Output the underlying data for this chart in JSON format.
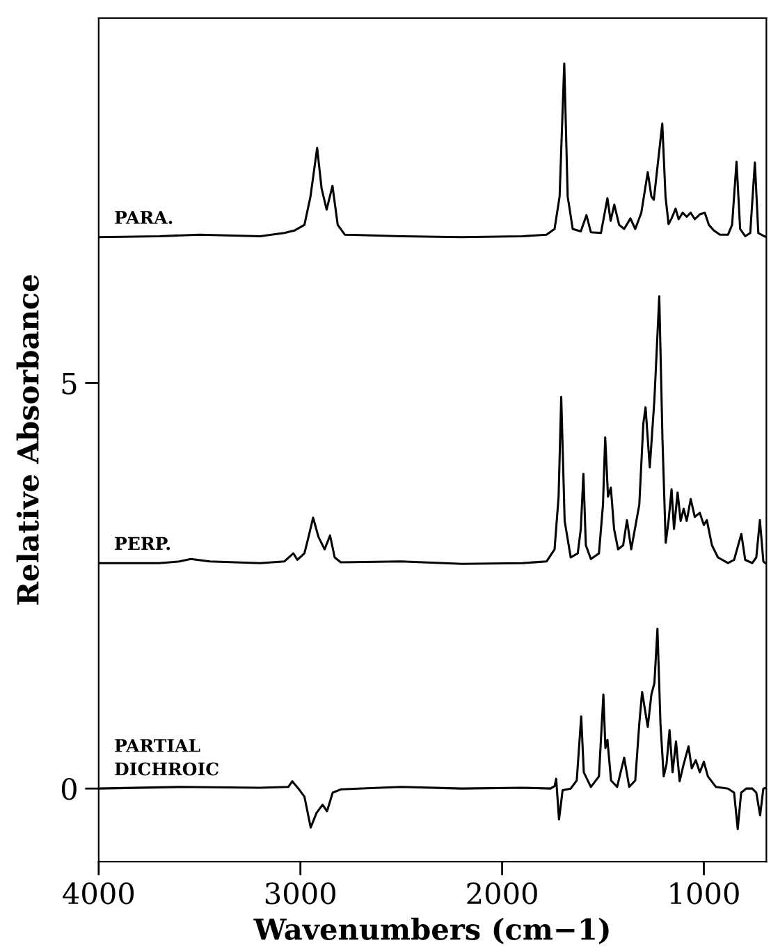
{
  "chart_data": {
    "type": "line",
    "xlabel": "Wavenumbers (cm−1)",
    "ylabel": "Relative Absorbance",
    "xlim": [
      4000,
      690
    ],
    "ylim": [
      -0.9,
      9.5
    ],
    "xticks": [
      4000,
      3000,
      2000,
      1000
    ],
    "yticks": [
      0,
      5
    ],
    "grid": false,
    "legend": false,
    "marker": "none",
    "line_style": "solid",
    "series": [
      {
        "name": "PARA.",
        "color": "#000000",
        "x": [
          4000,
          3700,
          3500,
          3200,
          3080,
          3030,
          2980,
          2950,
          2917,
          2895,
          2870,
          2841,
          2815,
          2780,
          2500,
          2200,
          1900,
          1780,
          1740,
          1715,
          1692,
          1675,
          1650,
          1610,
          1582,
          1560,
          1510,
          1478,
          1462,
          1444,
          1420,
          1395,
          1364,
          1340,
          1310,
          1278,
          1260,
          1248,
          1206,
          1190,
          1175,
          1160,
          1140,
          1125,
          1105,
          1085,
          1065,
          1045,
          1020,
          995,
          975,
          950,
          920,
          880,
          860,
          838,
          820,
          795,
          770,
          747,
          730,
          700,
          690
        ],
        "values": [
          6.8,
          6.81,
          6.83,
          6.81,
          6.85,
          6.88,
          6.95,
          7.3,
          7.9,
          7.4,
          7.14,
          7.43,
          6.95,
          6.83,
          6.81,
          6.8,
          6.81,
          6.83,
          6.9,
          7.3,
          8.94,
          7.3,
          6.9,
          6.87,
          7.07,
          6.86,
          6.85,
          7.28,
          7.0,
          7.2,
          6.95,
          6.9,
          7.03,
          6.9,
          7.1,
          7.6,
          7.3,
          7.26,
          8.2,
          7.3,
          6.96,
          7.03,
          7.15,
          7.02,
          7.1,
          7.05,
          7.1,
          7.02,
          7.08,
          7.1,
          6.95,
          6.88,
          6.83,
          6.83,
          6.95,
          7.73,
          6.9,
          6.81,
          6.85,
          7.72,
          6.85,
          6.81,
          6.8
        ]
      },
      {
        "name": "PERP.",
        "color": "#000000",
        "x": [
          4000,
          3700,
          3600,
          3543,
          3450,
          3200,
          3080,
          3035,
          3015,
          2980,
          2960,
          2937,
          2910,
          2880,
          2853,
          2830,
          2800,
          2500,
          2200,
          1900,
          1780,
          1740,
          1720,
          1707,
          1690,
          1660,
          1625,
          1610,
          1597,
          1585,
          1560,
          1520,
          1500,
          1489,
          1475,
          1461,
          1445,
          1425,
          1400,
          1381,
          1360,
          1320,
          1300,
          1289,
          1268,
          1245,
          1221,
          1205,
          1189,
          1175,
          1160,
          1148,
          1130,
          1115,
          1100,
          1085,
          1065,
          1045,
          1020,
          1000,
          985,
          960,
          930,
          880,
          850,
          814,
          795,
          760,
          740,
          722,
          705,
          690
        ],
        "values": [
          2.78,
          2.78,
          2.8,
          2.83,
          2.8,
          2.78,
          2.8,
          2.9,
          2.82,
          2.9,
          3.1,
          3.34,
          3.1,
          2.95,
          3.12,
          2.85,
          2.79,
          2.8,
          2.77,
          2.78,
          2.8,
          2.95,
          3.6,
          4.83,
          3.3,
          2.85,
          2.9,
          3.2,
          3.88,
          3.0,
          2.83,
          2.9,
          3.5,
          4.33,
          3.6,
          3.71,
          3.2,
          2.95,
          3.0,
          3.31,
          2.95,
          3.5,
          4.5,
          4.7,
          3.96,
          4.8,
          6.07,
          4.3,
          3.03,
          3.3,
          3.69,
          3.2,
          3.65,
          3.3,
          3.45,
          3.3,
          3.57,
          3.35,
          3.4,
          3.25,
          3.31,
          3.0,
          2.85,
          2.78,
          2.82,
          3.14,
          2.82,
          2.78,
          2.85,
          3.31,
          2.8,
          2.77
        ]
      },
      {
        "name": "PARTIAL\nDICHROIC",
        "color": "#000000",
        "x": [
          4000,
          3600,
          3200,
          3060,
          3040,
          3010,
          2980,
          2949,
          2920,
          2890,
          2868,
          2840,
          2800,
          2500,
          2200,
          1900,
          1760,
          1740,
          1732,
          1718,
          1700,
          1660,
          1630,
          1608,
          1595,
          1560,
          1520,
          1498,
          1488,
          1478,
          1460,
          1430,
          1395,
          1370,
          1340,
          1320,
          1306,
          1278,
          1260,
          1245,
          1230,
          1215,
          1199,
          1185,
          1170,
          1155,
          1138,
          1120,
          1100,
          1076,
          1060,
          1040,
          1020,
          1000,
          980,
          940,
          880,
          850,
          832,
          815,
          790,
          760,
          740,
          721,
          705,
          690
        ],
        "values": [
          0.0,
          0.02,
          0.01,
          0.02,
          0.09,
          0.0,
          -0.1,
          -0.48,
          -0.3,
          -0.2,
          -0.28,
          -0.05,
          -0.01,
          0.02,
          0.0,
          0.01,
          0.0,
          0.03,
          0.12,
          -0.38,
          -0.02,
          0.0,
          0.1,
          0.89,
          0.2,
          0.02,
          0.15,
          1.16,
          0.5,
          0.6,
          0.1,
          0.02,
          0.38,
          0.02,
          0.1,
          0.8,
          1.19,
          0.76,
          1.16,
          1.3,
          1.97,
          0.8,
          0.15,
          0.3,
          0.72,
          0.2,
          0.58,
          0.09,
          0.3,
          0.52,
          0.25,
          0.35,
          0.2,
          0.33,
          0.15,
          0.02,
          0.0,
          -0.05,
          -0.5,
          -0.05,
          0.0,
          0.0,
          -0.05,
          -0.33,
          0.0,
          0.01
        ]
      }
    ]
  }
}
